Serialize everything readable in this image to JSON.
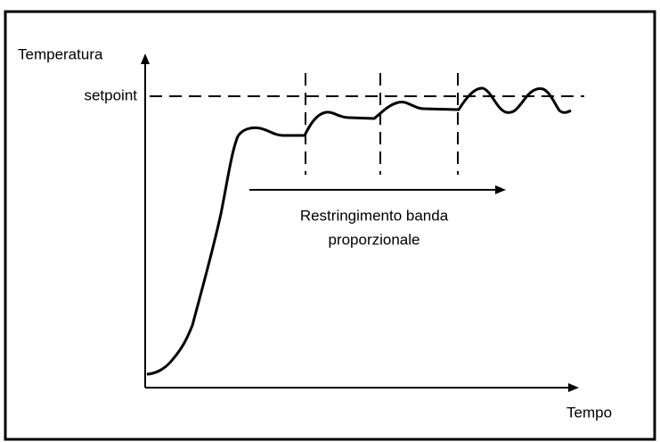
{
  "labels": {
    "y_axis": "Temperatura",
    "setpoint": "setpoint",
    "x_axis": "Tempo",
    "annotation": [
      "Restringimento banda",
      "proporzionale"
    ]
  }
}
